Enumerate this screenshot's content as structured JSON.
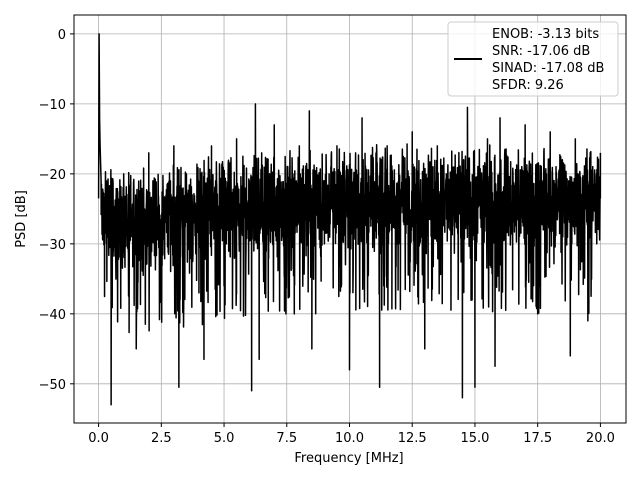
{
  "chart_data": {
    "type": "line",
    "title": "",
    "xlabel": "Frequency [MHz]",
    "ylabel": "PSD [dB]",
    "xlim": [
      -0.98,
      21.02
    ],
    "ylim": [
      -55.6,
      2.7
    ],
    "xticks": [
      0,
      2.5,
      5,
      7.5,
      10,
      12.5,
      15,
      17.5,
      20
    ],
    "xtick_labels": [
      "0.0",
      "2.5",
      "5.0",
      "7.5",
      "10.0",
      "12.5",
      "15.0",
      "17.5",
      "20.0"
    ],
    "yticks": [
      0,
      -10,
      -20,
      -30,
      -40,
      -50
    ],
    "ytick_labels": [
      "0",
      "−10",
      "−20",
      "−30",
      "−40",
      "−50"
    ],
    "grid": true,
    "legend_position": "top-right",
    "legend_lines": [
      "ENOB: -3.13 bits",
      "SNR: -17.06 dB",
      "SINAD: -17.08 dB",
      "SFDR: 9.26"
    ],
    "series": [
      {
        "color": "#000000",
        "x": [
          0,
          0.02,
          0.04,
          0.06,
          0.1,
          0.3,
          0.5,
          1.0,
          1.5,
          2.0,
          2.5,
          3.0,
          3.2,
          3.5,
          4.0,
          4.2,
          4.5,
          5.0,
          5.5,
          6.0,
          6.1,
          6.25,
          6.4,
          6.5,
          7.0,
          7.5,
          7.8,
          8.0,
          8.5,
          8.4,
          9.0,
          9.5,
          10.0,
          10.5,
          11.2,
          11.5,
          12.0,
          12.5,
          13.0,
          13.5,
          14.0,
          14.5,
          14.7,
          15.0,
          15.5,
          15.8,
          16.0,
          16.5,
          17.0,
          17.5,
          18.0,
          18.5,
          18.8,
          19.0,
          19.5,
          20.0
        ],
        "y": [
          -23.5,
          0,
          -12,
          -16,
          -21,
          -26,
          -53,
          -20,
          -45,
          -17,
          -33,
          -16,
          -50.5,
          -20,
          -37,
          -46.5,
          -16,
          -36,
          -15,
          -27,
          -51,
          -10,
          -46.5,
          -17,
          -13,
          -28,
          -40,
          -16,
          -45,
          -11,
          -30,
          -16,
          -48,
          -12,
          -50.5,
          -16,
          -30,
          -14,
          -45,
          -16,
          -28,
          -52,
          -10.5,
          -50.5,
          -15,
          -47.5,
          -12,
          -30,
          -13,
          -40,
          -14,
          -29,
          -46,
          -15,
          -41,
          -17
        ]
      }
    ],
    "noise_profile": {
      "x": [
        0.2,
        1,
        2,
        3,
        4,
        5,
        6,
        7,
        8,
        9,
        10,
        11,
        12,
        13,
        14,
        15,
        16,
        17,
        18,
        19,
        20
      ],
      "upper": [
        -18,
        -19,
        -18.5,
        -17.5,
        -17,
        -16.5,
        -16,
        -16,
        -15.5,
        -15.5,
        -15.5,
        -15.5,
        -15.5,
        -15.5,
        -15.5,
        -15.5,
        -15.5,
        -15.5,
        -15.5,
        -15.5,
        -15.5
      ],
      "lower": [
        -33,
        -35,
        -35,
        -34,
        -34,
        -33,
        -33,
        -33,
        -32,
        -32,
        -32,
        -32,
        -32,
        -32,
        -32,
        -32,
        -32,
        -32,
        -32,
        -32,
        -32
      ]
    }
  }
}
